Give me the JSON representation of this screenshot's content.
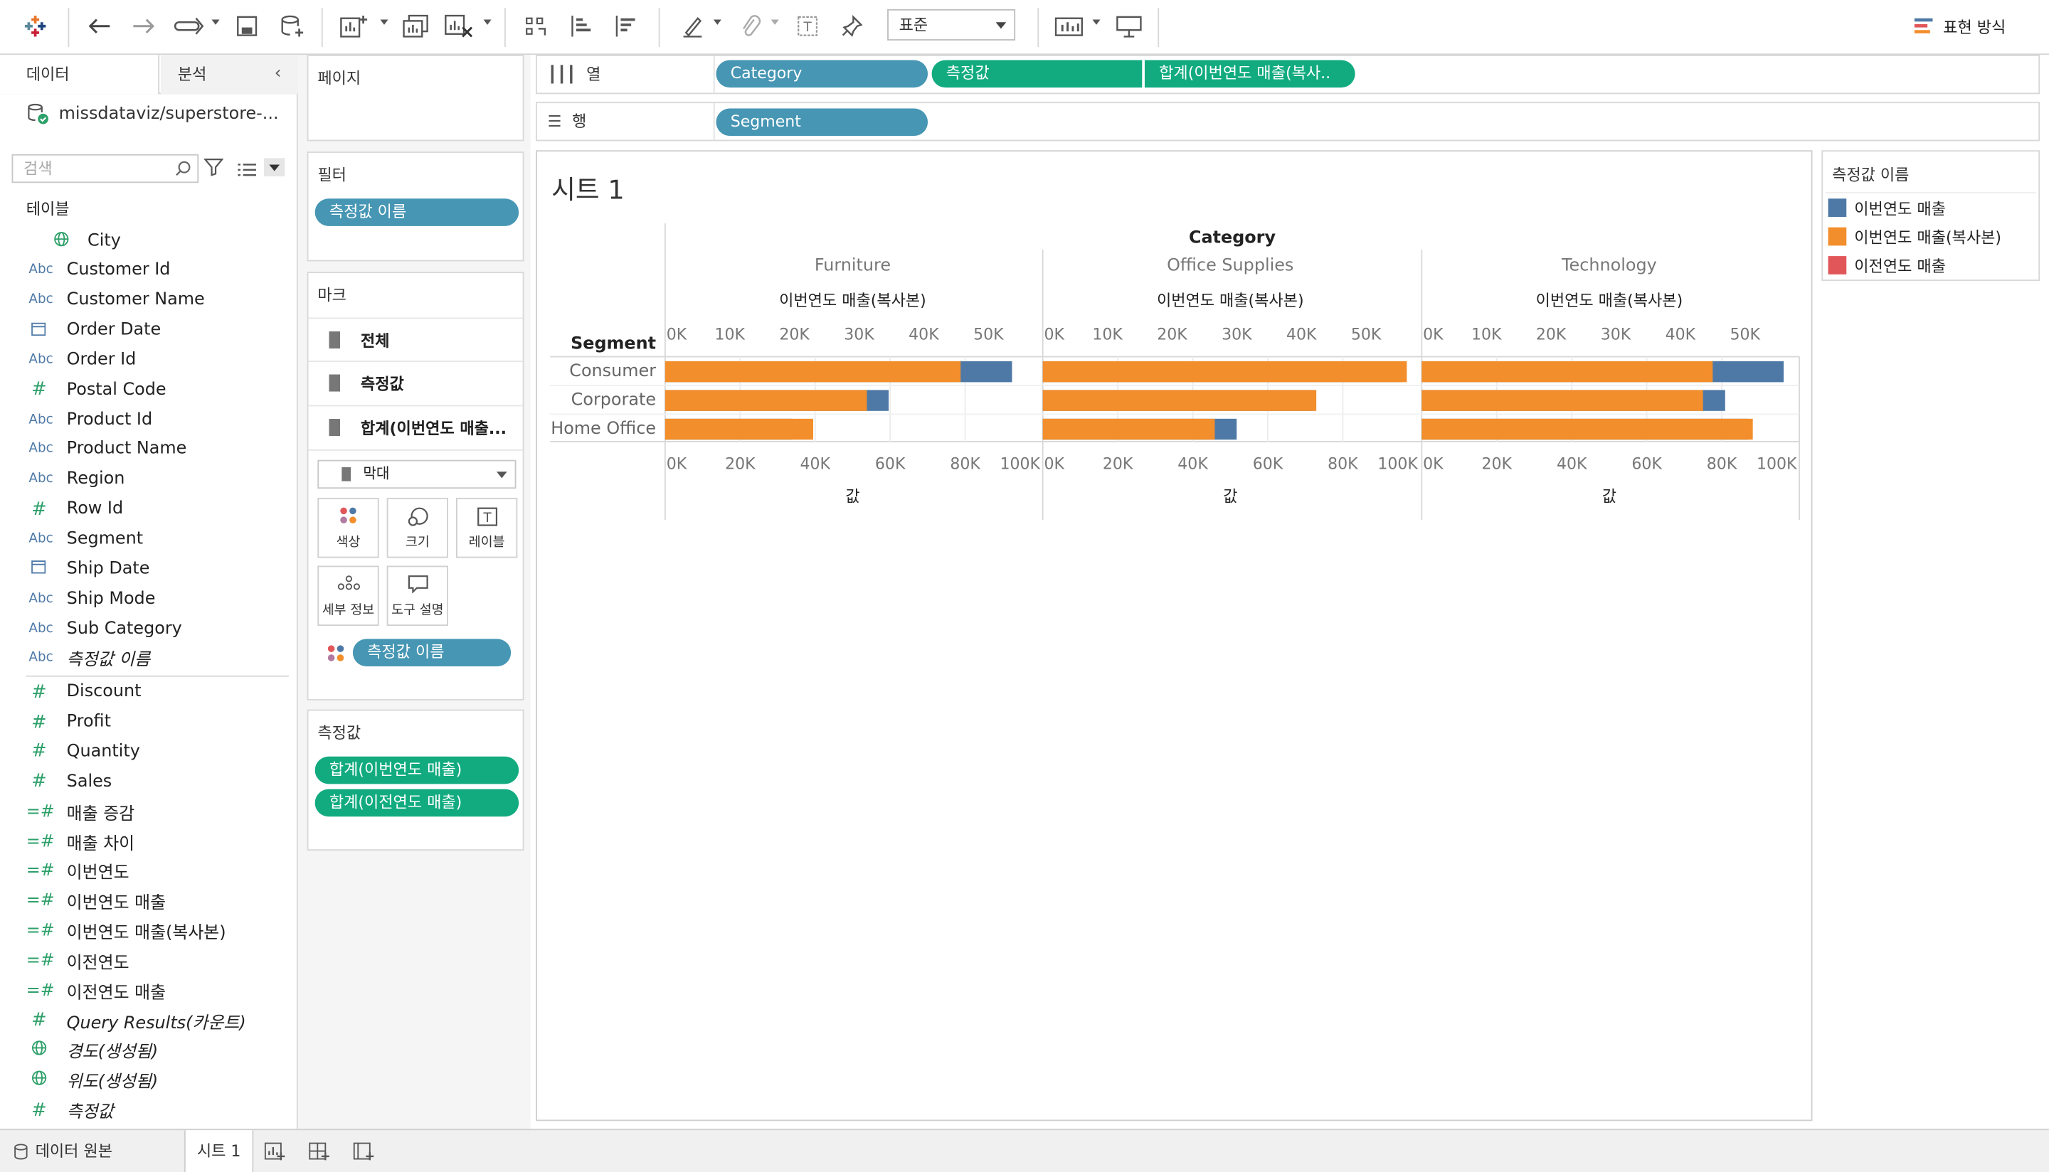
{
  "toolbar": {
    "fit_value": "표준",
    "show_me_label": "표현 방식",
    "icons": [
      "tableau-logo-icon",
      "undo-icon",
      "redo-icon",
      "replay-icon",
      "save-icon",
      "new-datasource-icon",
      "new-worksheet-icon",
      "duplicate-icon",
      "clear-sheet-icon",
      "swap-icon",
      "sort-asc-icon",
      "sort-desc-icon",
      "highlight-icon",
      "group-icon",
      "label-icon",
      "pin-icon",
      "show-cards-icon",
      "presentation-icon"
    ]
  },
  "left_panel": {
    "tab_data": "데이터",
    "tab_analysis": "분석",
    "datasource_name": "missdataviz/superstore-...",
    "search_placeholder": "검색",
    "section_tables": "테이블",
    "fields": [
      {
        "icon": "globe",
        "name": "City",
        "italic": false
      },
      {
        "icon": "abc",
        "name": "Customer Id",
        "italic": false
      },
      {
        "icon": "abc",
        "name": "Customer Name",
        "italic": false
      },
      {
        "icon": "cal",
        "name": "Order Date",
        "italic": false
      },
      {
        "icon": "abc",
        "name": "Order Id",
        "italic": false
      },
      {
        "icon": "hash",
        "name": "Postal Code",
        "italic": false
      },
      {
        "icon": "abc",
        "name": "Product Id",
        "italic": false
      },
      {
        "icon": "abc",
        "name": "Product Name",
        "italic": false
      },
      {
        "icon": "abc",
        "name": "Region",
        "italic": false
      },
      {
        "icon": "hash",
        "name": "Row Id",
        "italic": false
      },
      {
        "icon": "abc",
        "name": "Segment",
        "italic": false
      },
      {
        "icon": "cal",
        "name": "Ship Date",
        "italic": false
      },
      {
        "icon": "abc",
        "name": "Ship Mode",
        "italic": false
      },
      {
        "icon": "abc",
        "name": "Sub Category",
        "italic": false
      },
      {
        "icon": "abc",
        "name": "측정값 이름",
        "italic": true
      },
      {
        "icon": "hash",
        "name": "Discount",
        "italic": false
      },
      {
        "icon": "hash",
        "name": "Profit",
        "italic": false
      },
      {
        "icon": "hash",
        "name": "Quantity",
        "italic": false
      },
      {
        "icon": "hash",
        "name": "Sales",
        "italic": false
      },
      {
        "icon": "calc",
        "name": "매출 증감",
        "italic": false
      },
      {
        "icon": "calc",
        "name": "매출 차이",
        "italic": false
      },
      {
        "icon": "calc",
        "name": "이번연도",
        "italic": false
      },
      {
        "icon": "calc",
        "name": "이번연도 매출",
        "italic": false
      },
      {
        "icon": "calc",
        "name": "이번연도 매출(복사본)",
        "italic": false
      },
      {
        "icon": "calc",
        "name": "이전연도",
        "italic": false
      },
      {
        "icon": "calc",
        "name": "이전연도 매출",
        "italic": false
      },
      {
        "icon": "hash",
        "name": "Query Results(카운트)",
        "italic": true
      },
      {
        "icon": "globe",
        "name": "경도(생성됨)",
        "italic": true
      },
      {
        "icon": "globe",
        "name": "위도(생성됨)",
        "italic": true
      },
      {
        "icon": "hash",
        "name": "측정값",
        "italic": true
      }
    ]
  },
  "cards": {
    "pages_title": "페이지",
    "filters_title": "필터",
    "filter_pill": "측정값 이름",
    "marks_title": "마크",
    "marks_rows": [
      "전체",
      "측정값",
      "합계(이번연도 매출..."
    ],
    "mark_type": "막대",
    "mark_buttons": {
      "color": "색상",
      "size": "크기",
      "label": "레이블",
      "detail": "세부 정보",
      "tooltip": "도구 설명"
    },
    "marks_pill": "측정값 이름",
    "measure_values_title": "측정값",
    "measure_values_pills": [
      "합계(이번연도 매출)",
      "합계(이전연도 매출)"
    ]
  },
  "shelves": {
    "columns_label": "열",
    "rows_label": "행",
    "column_pills": [
      "Category",
      "측정값",
      "합계(이번연도 매출(복사.."
    ],
    "row_pills": [
      "Segment"
    ]
  },
  "view": {
    "sheet_title": "시트 1"
  },
  "legend": {
    "title": "측정값 이름",
    "items": [
      {
        "name": "이번연도 매출",
        "color": "#4e79a7"
      },
      {
        "name": "이번연도 매출(복사본)",
        "color": "#f28e2b"
      },
      {
        "name": "이전연도 매출",
        "color": "#e15759"
      }
    ]
  },
  "bottom": {
    "datasource_tab": "데이터 원본",
    "sheet_tab": "시트 1"
  },
  "chart_data": {
    "type": "bar",
    "orientation": "horizontal",
    "column_header": "Category",
    "row_header": "Segment",
    "categories": [
      "Furniture",
      "Office Supplies",
      "Technology"
    ],
    "segments": [
      "Consumer",
      "Corporate",
      "Home Office"
    ],
    "top_axis_title": "이번연도 매출(복사본)",
    "top_axis_ticks": [
      "0K",
      "10K",
      "20K",
      "30K",
      "40K",
      "50K"
    ],
    "top_axis_range": [
      0,
      58000
    ],
    "bottom_axis_title": "값",
    "bottom_axis_ticks": [
      "0K",
      "20K",
      "40K",
      "60K",
      "80K",
      "100K"
    ],
    "bottom_axis_range": [
      0,
      100000
    ],
    "grid": true,
    "series": [
      {
        "name": "이번연도 매출(복사본)",
        "color": "#f28e2b",
        "axis": "top",
        "values": {
          "Furniture": [
            45700,
            31200,
            22900
          ],
          "Office Supplies": [
            56300,
            42300,
            26600
          ],
          "Technology": [
            45000,
            43500,
            51200
          ]
        }
      },
      {
        "name": "이번연도 매출",
        "color": "#4e79a7",
        "axis": "bottom",
        "values": {
          "Furniture": [
            92500,
            59600,
            34000
          ],
          "Office Supplies": [
            95600,
            72200,
            51700
          ],
          "Technology": [
            96500,
            80900,
            87000
          ]
        }
      }
    ]
  }
}
